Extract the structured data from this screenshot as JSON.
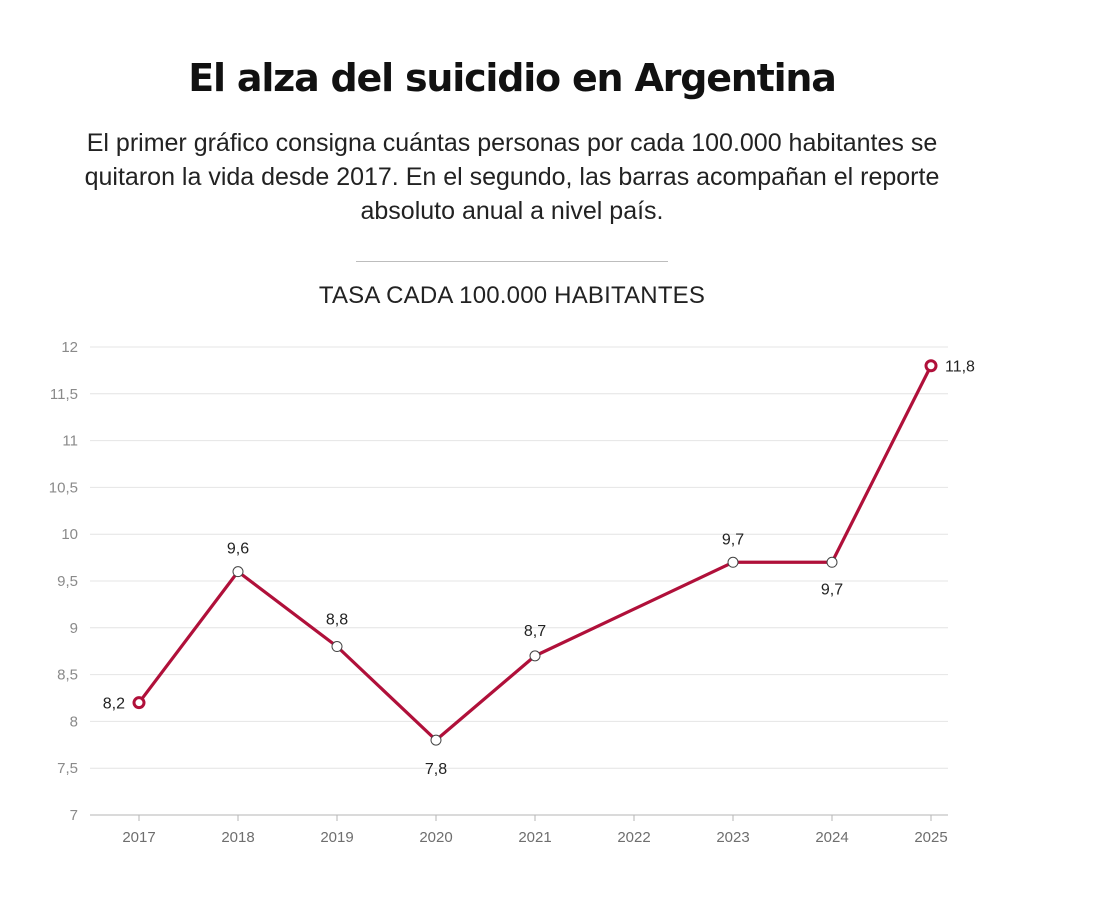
{
  "header": {
    "title": "El alza del suicidio en Argentina",
    "subtitle": "El primer gráfico consigna cuántas personas por cada 100.000 habitantes se quitaron la vida desde 2017. En el segundo, las barras acompañan el reporte absoluto anual a nivel país."
  },
  "chart_data": {
    "type": "line",
    "title": "TASA CADA 100.000 HABITANTES",
    "xlabel": "",
    "ylabel": "",
    "x": [
      "2017",
      "2018",
      "2019",
      "2020",
      "2021",
      "2022",
      "2023",
      "2024",
      "2025"
    ],
    "series": [
      {
        "values": [
          8.2,
          9.6,
          8.8,
          7.8,
          8.7,
          null,
          9.7,
          9.7,
          11.8
        ],
        "labels": [
          "8,2",
          "9,6",
          "8,8",
          "7,8",
          "8,7",
          "",
          "9,7",
          "9,7",
          "11,8"
        ],
        "color": "#b0103a"
      }
    ],
    "ylim": [
      7,
      12
    ],
    "yticks": [
      7,
      7.5,
      8,
      8.5,
      9,
      9.5,
      10,
      10.5,
      11,
      11.5,
      12
    ],
    "ytick_labels": [
      "7",
      "7,5",
      "8",
      "8,5",
      "9",
      "9,5",
      "10",
      "10,5",
      "11",
      "11,5",
      "12"
    ],
    "grid": true,
    "colors": {
      "line": "#b0103a",
      "grid": "#e4e4e4",
      "axis": "#b5b5b5"
    }
  }
}
